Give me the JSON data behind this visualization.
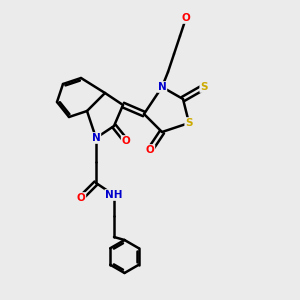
{
  "background_color": "#ebebeb",
  "atom_colors": {
    "C": "#000000",
    "N": "#0000cc",
    "O": "#ff0000",
    "S": "#ccaa00",
    "H": "#008888"
  },
  "bond_color": "#000000",
  "bond_width": 1.8,
  "figsize": [
    3.0,
    3.0
  ],
  "dpi": 100,
  "xlim": [
    0,
    10
  ],
  "ylim": [
    0,
    10
  ]
}
